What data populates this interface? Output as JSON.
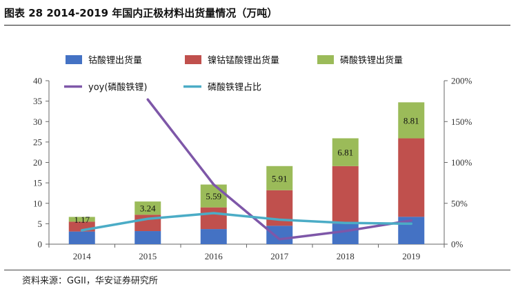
{
  "header": {
    "title": "图表 28 2014-2019 年国内正极材料出货量情况（万吨）"
  },
  "footer": {
    "source": "资料来源：GGII，华安证券研究所"
  },
  "chart_data": {
    "type": "bar",
    "stacked": true,
    "categories": [
      "2014",
      "2015",
      "2016",
      "2017",
      "2018",
      "2019"
    ],
    "series": [
      {
        "name": "钴酸锂出货量",
        "kind": "bar",
        "axis": "left",
        "color": "#4472C4",
        "values": [
          3.1,
          3.2,
          3.7,
          4.5,
          5.0,
          6.7
        ]
      },
      {
        "name": "镍钴锰酸锂出货量",
        "kind": "bar",
        "axis": "left",
        "color": "#C0504D",
        "values": [
          2.4,
          4.0,
          5.3,
          8.7,
          14.1,
          19.2
        ]
      },
      {
        "name": "磷酸铁锂出货量",
        "kind": "bar",
        "axis": "left",
        "color": "#9BBB59",
        "values": [
          1.17,
          3.24,
          5.59,
          5.91,
          6.81,
          8.81
        ],
        "labels": [
          "1.17",
          "3.24",
          "5.59",
          "5.91",
          "6.81",
          "8.81"
        ]
      },
      {
        "name": "yoy(磷酸铁锂)",
        "kind": "line",
        "axis": "right",
        "color": "#7E57A8",
        "values": [
          null,
          1.77,
          0.73,
          0.06,
          0.16,
          0.29
        ]
      },
      {
        "name": "磷酸铁锂占比",
        "kind": "line",
        "axis": "right",
        "color": "#4BACC6",
        "values": [
          0.17,
          0.31,
          0.38,
          0.3,
          0.26,
          0.25
        ]
      }
    ],
    "y_left": {
      "min": 0,
      "max": 40,
      "step": 5,
      "ticks": [
        "0",
        "5",
        "10",
        "15",
        "20",
        "25",
        "30",
        "35",
        "40"
      ]
    },
    "y_right": {
      "min": 0,
      "max": 2,
      "step": 0.5,
      "ticks": [
        "0%",
        "50%",
        "100%",
        "150%",
        "200%"
      ]
    },
    "legend_position": "top"
  }
}
